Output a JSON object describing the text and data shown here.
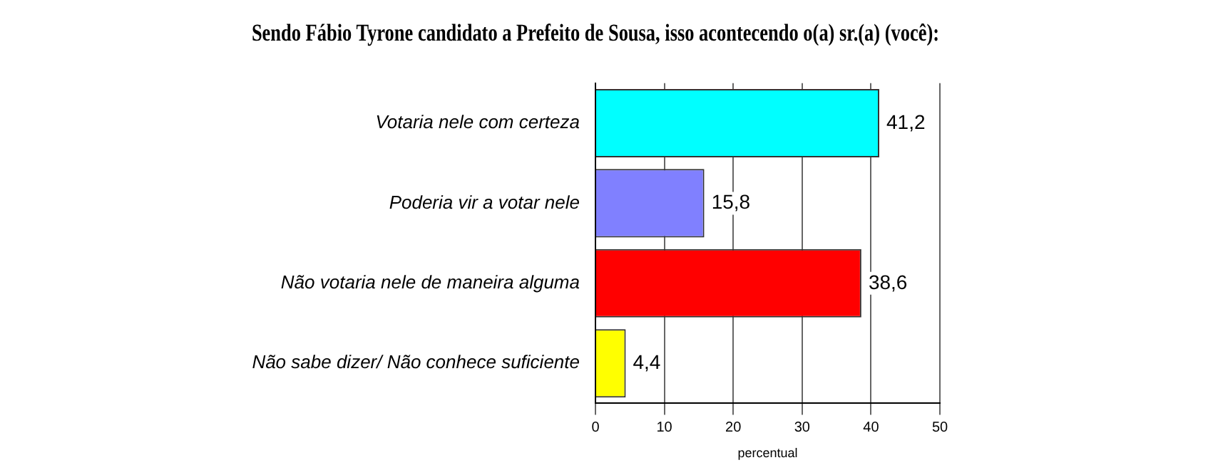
{
  "chart_data": {
    "type": "bar",
    "orientation": "horizontal",
    "title": "Sendo Fábio Tyrone candidato a Prefeito de Sousa, isso acontecendo o(a) sr.(a) (você):",
    "categories": [
      "Votaria nele com certeza",
      "Poderia vir a votar nele",
      "Não votaria nele de maneira alguma",
      "Não sabe dizer/ Não conhece suficiente"
    ],
    "values": [
      41.2,
      15.8,
      38.6,
      4.4
    ],
    "colors": [
      "#00ffff",
      "#8080ff",
      "#ff0000",
      "#ffff00"
    ],
    "xlabel": "percentual",
    "xlim": [
      0,
      50
    ],
    "xticks": [
      0,
      10,
      20,
      30,
      40,
      50
    ],
    "grid": "x",
    "value_labels": [
      "41,2",
      "15,8",
      "38,6",
      "4,4"
    ]
  }
}
